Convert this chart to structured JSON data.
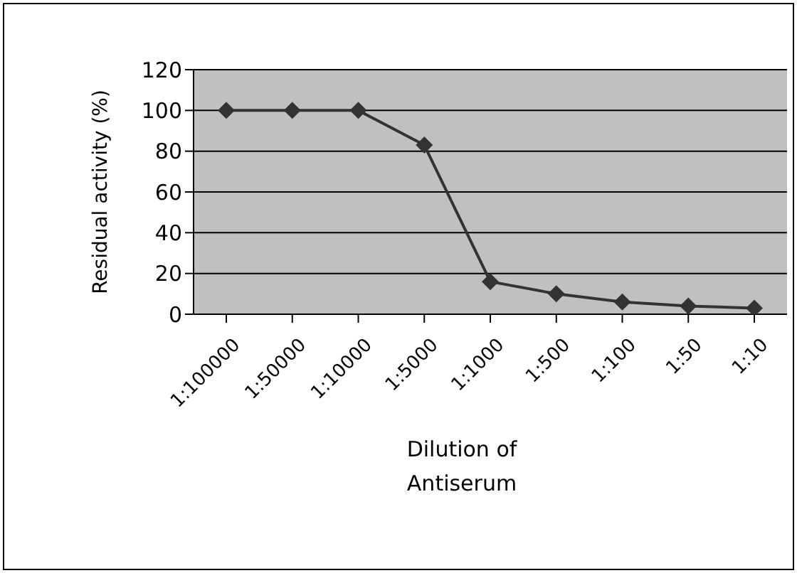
{
  "chart_data": {
    "type": "line",
    "xlabel": "Dilution of\nAntiserum",
    "ylabel": "Residual activity (%)",
    "categories": [
      "1:100000",
      "1:50000",
      "1:10000",
      "1:5000",
      "1:1000",
      "1:500",
      "1:100",
      "1:50",
      "1:10"
    ],
    "values": [
      100,
      100,
      100,
      83,
      16,
      10,
      6,
      4,
      3
    ],
    "color": "#333333",
    "marker": "diamond",
    "line_style": "solid",
    "ylim": [
      0,
      120
    ],
    "yticks": [
      0,
      20,
      40,
      60,
      80,
      100,
      120
    ],
    "grid": "y"
  }
}
